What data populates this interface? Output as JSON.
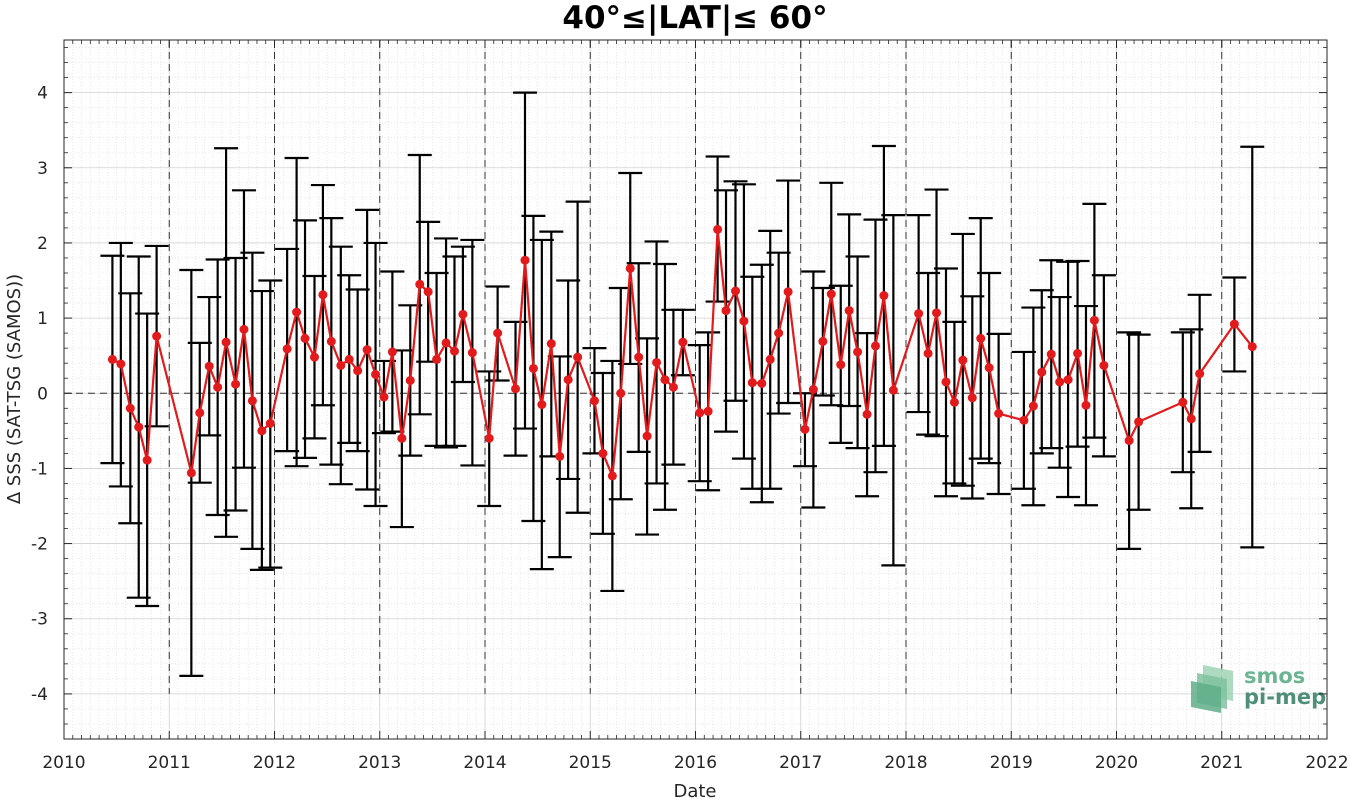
{
  "chart_data": {
    "type": "line",
    "title": "40°≤|LAT|≤ 60°",
    "xlabel": "Date",
    "ylabel": "Δ SSS (SAT-TSG (SAMOS))",
    "xlim": [
      2010,
      2022
    ],
    "ylim": [
      -4.6,
      4.7
    ],
    "x_ticks": [
      2010,
      2011,
      2012,
      2013,
      2014,
      2015,
      2016,
      2017,
      2018,
      2019,
      2020,
      2021,
      2022
    ],
    "x_tick_labels": [
      "2010",
      "2011",
      "2012",
      "2013",
      "2014",
      "2015",
      "2016",
      "2017",
      "2018",
      "2019",
      "2020",
      "2021",
      "2022"
    ],
    "y_ticks": [
      -4,
      -3,
      -2,
      -1,
      0,
      1,
      2,
      3,
      4
    ],
    "y_tick_labels": [
      "-4",
      "-3",
      "-2",
      "-1",
      "0",
      "1",
      "2",
      "3",
      "4"
    ],
    "grid": true,
    "year_separators": [
      2011,
      2012,
      2013,
      2014,
      2015,
      2016,
      2017,
      2018,
      2019,
      2020,
      2021
    ],
    "zero_line": 0,
    "series": [
      {
        "color": "#e31a1c",
        "error_bar_color": "#000000",
        "points": [
          {
            "x": 2010.46,
            "y": 0.45,
            "lo": -0.93,
            "hi": 1.83
          },
          {
            "x": 2010.54,
            "y": 0.39,
            "lo": -1.24,
            "hi": 2.0
          },
          {
            "x": 2010.63,
            "y": -0.2,
            "lo": -1.73,
            "hi": 1.33
          },
          {
            "x": 2010.71,
            "y": -0.45,
            "lo": -2.72,
            "hi": 1.82
          },
          {
            "x": 2010.79,
            "y": -0.89,
            "lo": -2.83,
            "hi": 1.06
          },
          {
            "x": 2010.88,
            "y": 0.76,
            "lo": -0.44,
            "hi": 1.96
          },
          {
            "x": 2011.21,
            "y": -1.06,
            "lo": -3.76,
            "hi": 1.64
          },
          {
            "x": 2011.29,
            "y": -0.26,
            "lo": -1.19,
            "hi": 0.67
          },
          {
            "x": 2011.38,
            "y": 0.36,
            "lo": -0.56,
            "hi": 1.28
          },
          {
            "x": 2011.46,
            "y": 0.08,
            "lo": -1.62,
            "hi": 1.78
          },
          {
            "x": 2011.54,
            "y": 0.68,
            "lo": -1.91,
            "hi": 3.26
          },
          {
            "x": 2011.63,
            "y": 0.12,
            "lo": -1.56,
            "hi": 1.8
          },
          {
            "x": 2011.71,
            "y": 0.85,
            "lo": -0.99,
            "hi": 2.7
          },
          {
            "x": 2011.79,
            "y": -0.1,
            "lo": -2.07,
            "hi": 1.87
          },
          {
            "x": 2011.88,
            "y": -0.5,
            "lo": -2.35,
            "hi": 1.36
          },
          {
            "x": 2011.96,
            "y": -0.4,
            "lo": -2.32,
            "hi": 1.5
          },
          {
            "x": 2012.12,
            "y": 0.59,
            "lo": -0.77,
            "hi": 1.92
          },
          {
            "x": 2012.21,
            "y": 1.08,
            "lo": -0.97,
            "hi": 3.13
          },
          {
            "x": 2012.29,
            "y": 0.73,
            "lo": -0.86,
            "hi": 2.3
          },
          {
            "x": 2012.38,
            "y": 0.48,
            "lo": -0.6,
            "hi": 1.56
          },
          {
            "x": 2012.46,
            "y": 1.31,
            "lo": -0.16,
            "hi": 2.77
          },
          {
            "x": 2012.54,
            "y": 0.69,
            "lo": -0.95,
            "hi": 2.33
          },
          {
            "x": 2012.63,
            "y": 0.37,
            "lo": -1.21,
            "hi": 1.95
          },
          {
            "x": 2012.71,
            "y": 0.45,
            "lo": -0.66,
            "hi": 1.57
          },
          {
            "x": 2012.79,
            "y": 0.3,
            "lo": -0.77,
            "hi": 1.38
          },
          {
            "x": 2012.88,
            "y": 0.58,
            "lo": -1.28,
            "hi": 2.44
          },
          {
            "x": 2012.96,
            "y": 0.25,
            "lo": -1.5,
            "hi": 2.0
          },
          {
            "x": 2013.04,
            "y": -0.05,
            "lo": -0.53,
            "hi": 0.43
          },
          {
            "x": 2013.12,
            "y": 0.55,
            "lo": -0.51,
            "hi": 1.62
          },
          {
            "x": 2013.21,
            "y": -0.6,
            "lo": -1.78,
            "hi": 0.57
          },
          {
            "x": 2013.29,
            "y": 0.17,
            "lo": -0.83,
            "hi": 1.17
          },
          {
            "x": 2013.38,
            "y": 1.45,
            "lo": -0.28,
            "hi": 3.17
          },
          {
            "x": 2013.46,
            "y": 1.35,
            "lo": 0.42,
            "hi": 2.28
          },
          {
            "x": 2013.54,
            "y": 0.45,
            "lo": -0.7,
            "hi": 1.6
          },
          {
            "x": 2013.63,
            "y": 0.67,
            "lo": -0.72,
            "hi": 2.06
          },
          {
            "x": 2013.71,
            "y": 0.56,
            "lo": -0.7,
            "hi": 1.82
          },
          {
            "x": 2013.79,
            "y": 1.05,
            "lo": 0.15,
            "hi": 1.95
          },
          {
            "x": 2013.88,
            "y": 0.54,
            "lo": -0.96,
            "hi": 2.04
          },
          {
            "x": 2014.04,
            "y": -0.6,
            "lo": -1.5,
            "hi": 0.29
          },
          {
            "x": 2014.12,
            "y": 0.8,
            "lo": 0.17,
            "hi": 1.42
          },
          {
            "x": 2014.29,
            "y": 0.06,
            "lo": -0.83,
            "hi": 0.95
          },
          {
            "x": 2014.38,
            "y": 1.77,
            "lo": -0.47,
            "hi": 4.0
          },
          {
            "x": 2014.46,
            "y": 0.33,
            "lo": -1.7,
            "hi": 2.36
          },
          {
            "x": 2014.54,
            "y": -0.15,
            "lo": -2.34,
            "hi": 2.04
          },
          {
            "x": 2014.63,
            "y": 0.66,
            "lo": -0.84,
            "hi": 2.15
          },
          {
            "x": 2014.71,
            "y": -0.84,
            "lo": -2.18,
            "hi": 0.49
          },
          {
            "x": 2014.79,
            "y": 0.18,
            "lo": -1.14,
            "hi": 1.5
          },
          {
            "x": 2014.88,
            "y": 0.48,
            "lo": -1.59,
            "hi": 2.55
          },
          {
            "x": 2015.04,
            "y": -0.1,
            "lo": -0.8,
            "hi": 0.6
          },
          {
            "x": 2015.12,
            "y": -0.8,
            "lo": -1.87,
            "hi": 0.27
          },
          {
            "x": 2015.21,
            "y": -1.1,
            "lo": -2.63,
            "hi": 0.43
          },
          {
            "x": 2015.29,
            "y": 0.0,
            "lo": -1.41,
            "hi": 1.4
          },
          {
            "x": 2015.38,
            "y": 1.66,
            "lo": 0.39,
            "hi": 2.93
          },
          {
            "x": 2015.46,
            "y": 0.48,
            "lo": -0.78,
            "hi": 1.73
          },
          {
            "x": 2015.54,
            "y": -0.57,
            "lo": -1.88,
            "hi": 0.73
          },
          {
            "x": 2015.63,
            "y": 0.41,
            "lo": -1.2,
            "hi": 2.02
          },
          {
            "x": 2015.71,
            "y": 0.18,
            "lo": -1.55,
            "hi": 1.72
          },
          {
            "x": 2015.79,
            "y": 0.08,
            "lo": -0.95,
            "hi": 1.11
          },
          {
            "x": 2015.88,
            "y": 0.68,
            "lo": 0.24,
            "hi": 1.11
          },
          {
            "x": 2016.04,
            "y": -0.26,
            "lo": -1.17,
            "hi": 0.64
          },
          {
            "x": 2016.12,
            "y": -0.24,
            "lo": -1.29,
            "hi": 0.81
          },
          {
            "x": 2016.21,
            "y": 2.18,
            "lo": 1.22,
            "hi": 3.15
          },
          {
            "x": 2016.29,
            "y": 1.1,
            "lo": -0.51,
            "hi": 2.7
          },
          {
            "x": 2016.38,
            "y": 1.36,
            "lo": -0.1,
            "hi": 2.82
          },
          {
            "x": 2016.46,
            "y": 0.96,
            "lo": -0.87,
            "hi": 2.78
          },
          {
            "x": 2016.54,
            "y": 0.14,
            "lo": -1.27,
            "hi": 1.55
          },
          {
            "x": 2016.63,
            "y": 0.13,
            "lo": -1.45,
            "hi": 1.71
          },
          {
            "x": 2016.71,
            "y": 0.45,
            "lo": -1.27,
            "hi": 2.16
          },
          {
            "x": 2016.79,
            "y": 0.8,
            "lo": -0.27,
            "hi": 1.87
          },
          {
            "x": 2016.88,
            "y": 1.35,
            "lo": -0.13,
            "hi": 2.83
          },
          {
            "x": 2017.04,
            "y": -0.48,
            "lo": -0.97,
            "hi": 0.0
          },
          {
            "x": 2017.12,
            "y": 0.05,
            "lo": -1.52,
            "hi": 1.62
          },
          {
            "x": 2017.21,
            "y": 0.69,
            "lo": -0.03,
            "hi": 1.4
          },
          {
            "x": 2017.29,
            "y": 1.32,
            "lo": -0.16,
            "hi": 2.8
          },
          {
            "x": 2017.38,
            "y": 0.38,
            "lo": -0.66,
            "hi": 1.43
          },
          {
            "x": 2017.46,
            "y": 1.1,
            "lo": -0.17,
            "hi": 2.38
          },
          {
            "x": 2017.54,
            "y": 0.55,
            "lo": -0.73,
            "hi": 1.82
          },
          {
            "x": 2017.63,
            "y": -0.28,
            "lo": -1.37,
            "hi": 0.8
          },
          {
            "x": 2017.71,
            "y": 0.63,
            "lo": -1.05,
            "hi": 2.31
          },
          {
            "x": 2017.79,
            "y": 1.3,
            "lo": -0.7,
            "hi": 3.29
          },
          {
            "x": 2017.88,
            "y": 0.04,
            "lo": -2.29,
            "hi": 2.37
          },
          {
            "x": 2018.12,
            "y": 1.06,
            "lo": -0.25,
            "hi": 2.37
          },
          {
            "x": 2018.21,
            "y": 0.53,
            "lo": -0.55,
            "hi": 1.6
          },
          {
            "x": 2018.29,
            "y": 1.07,
            "lo": -0.57,
            "hi": 2.71
          },
          {
            "x": 2018.38,
            "y": 0.15,
            "lo": -1.37,
            "hi": 1.66
          },
          {
            "x": 2018.46,
            "y": -0.12,
            "lo": -1.2,
            "hi": 0.95
          },
          {
            "x": 2018.54,
            "y": 0.44,
            "lo": -1.23,
            "hi": 2.12
          },
          {
            "x": 2018.63,
            "y": -0.06,
            "lo": -1.4,
            "hi": 1.29
          },
          {
            "x": 2018.71,
            "y": 0.73,
            "lo": -0.87,
            "hi": 2.33
          },
          {
            "x": 2018.79,
            "y": 0.34,
            "lo": -0.93,
            "hi": 1.6
          },
          {
            "x": 2018.88,
            "y": -0.27,
            "lo": -1.34,
            "hi": 0.79
          },
          {
            "x": 2019.12,
            "y": -0.36,
            "lo": -1.27,
            "hi": 0.55
          },
          {
            "x": 2019.21,
            "y": -0.17,
            "lo": -1.49,
            "hi": 1.14
          },
          {
            "x": 2019.29,
            "y": 0.28,
            "lo": -0.8,
            "hi": 1.37
          },
          {
            "x": 2019.38,
            "y": 0.52,
            "lo": -0.73,
            "hi": 1.77
          },
          {
            "x": 2019.46,
            "y": 0.15,
            "lo": -0.99,
            "hi": 1.28
          },
          {
            "x": 2019.54,
            "y": 0.18,
            "lo": -1.38,
            "hi": 1.75
          },
          {
            "x": 2019.63,
            "y": 0.53,
            "lo": -0.71,
            "hi": 1.76
          },
          {
            "x": 2019.71,
            "y": -0.16,
            "lo": -1.49,
            "hi": 1.16
          },
          {
            "x": 2019.79,
            "y": 0.97,
            "lo": -0.59,
            "hi": 2.52
          },
          {
            "x": 2019.88,
            "y": 0.37,
            "lo": -0.84,
            "hi": 1.57
          },
          {
            "x": 2020.12,
            "y": -0.63,
            "lo": -2.07,
            "hi": 0.81
          },
          {
            "x": 2020.21,
            "y": -0.38,
            "lo": -1.55,
            "hi": 0.78
          },
          {
            "x": 2020.63,
            "y": -0.12,
            "lo": -1.05,
            "hi": 0.81
          },
          {
            "x": 2020.71,
            "y": -0.34,
            "lo": -1.53,
            "hi": 0.85
          },
          {
            "x": 2020.79,
            "y": 0.26,
            "lo": -0.78,
            "hi": 1.31
          },
          {
            "x": 2021.12,
            "y": 0.92,
            "lo": 0.29,
            "hi": 1.54
          },
          {
            "x": 2021.29,
            "y": 0.62,
            "lo": -2.05,
            "hi": 3.28
          }
        ]
      }
    ]
  },
  "logo": {
    "line1": "smos",
    "line2": "pi-mep",
    "color": "#5a9e85"
  }
}
